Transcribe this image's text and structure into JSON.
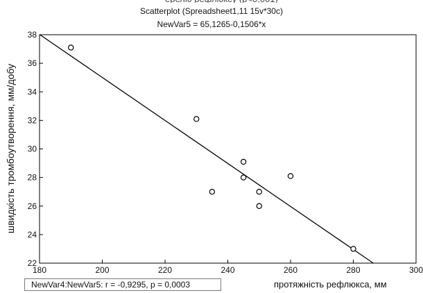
{
  "chart_data": {
    "type": "scatter",
    "title": "Scatterplot (Spreadsheet1,11 15v*30c)",
    "subtitle": "NewVar5 = 65,1265-0,1506*x",
    "xlabel": "протяжність рефлюкса,  мм",
    "ylabel": "швидкість тромбоутворення, мм/добу",
    "xlim": [
      180,
      300
    ],
    "ylim": [
      22,
      38
    ],
    "x_ticks": [
      "180",
      "200",
      "220",
      "240",
      "260",
      "280",
      "300"
    ],
    "y_ticks": [
      "22",
      "24",
      "26",
      "28",
      "30",
      "32",
      "34",
      "36",
      "38"
    ],
    "points": [
      {
        "x": 190,
        "y": 37.1
      },
      {
        "x": 230,
        "y": 32.1
      },
      {
        "x": 235,
        "y": 27.0
      },
      {
        "x": 245,
        "y": 29.1
      },
      {
        "x": 245,
        "y": 28.0
      },
      {
        "x": 250,
        "y": 27.0
      },
      {
        "x": 250,
        "y": 26.0
      },
      {
        "x": 260,
        "y": 28.1
      },
      {
        "x": 280,
        "y": 23.0
      }
    ],
    "regression": {
      "intercept": 65.1265,
      "slope": -0.1506
    },
    "stats_text": "NewVar4:NewVar5:   r = -0,9295,  p = 0,0003",
    "grid": false,
    "legend": "none"
  }
}
